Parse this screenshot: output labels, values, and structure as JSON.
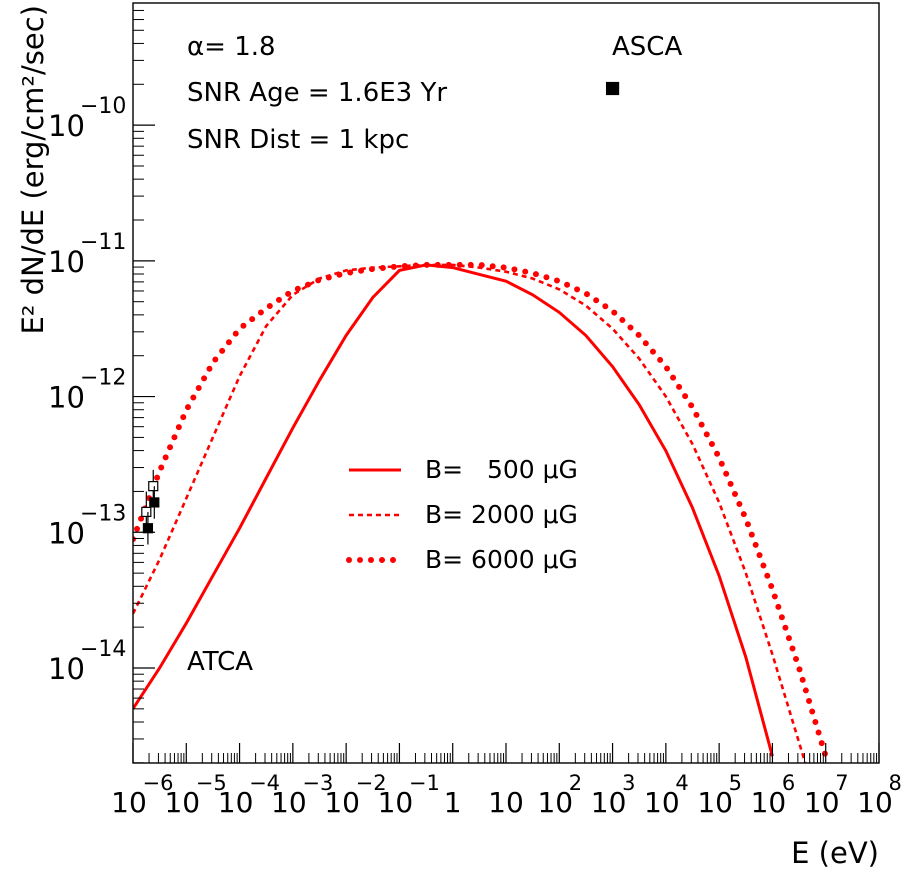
{
  "chart_data": {
    "type": "line",
    "x_scale": "log",
    "y_scale": "log",
    "xlim_log10": [
      -6.0,
      8.0
    ],
    "ylim_log10": [
      -14.7,
      -9.1
    ],
    "xlabel": "E (eV)",
    "ylabel": "E² dN/dE (erg/cm²/sec)",
    "x_ticks": [
      {
        "base": "10",
        "exp": "−6",
        "log": -6
      },
      {
        "base": "10",
        "exp": "−5",
        "log": -5
      },
      {
        "base": "10",
        "exp": "−4",
        "log": -4
      },
      {
        "base": "10",
        "exp": "−3",
        "log": -3
      },
      {
        "base": "10",
        "exp": "−2",
        "log": -2
      },
      {
        "base": "10",
        "exp": "−1",
        "log": -1
      },
      {
        "base": "1",
        "exp": "",
        "log": 0
      },
      {
        "base": "10",
        "exp": "",
        "log": 1
      },
      {
        "base": "10",
        "exp": "2",
        "log": 2
      },
      {
        "base": "10",
        "exp": "3",
        "log": 3
      },
      {
        "base": "10",
        "exp": "4",
        "log": 4
      },
      {
        "base": "10",
        "exp": "5",
        "log": 5
      },
      {
        "base": "10",
        "exp": "6",
        "log": 6
      },
      {
        "base": "10",
        "exp": "7",
        "log": 7
      },
      {
        "base": "10",
        "exp": "8",
        "log": 8
      }
    ],
    "y_ticks": [
      {
        "base": "10",
        "exp": "−14",
        "log": -14
      },
      {
        "base": "10",
        "exp": "−13",
        "log": -13
      },
      {
        "base": "10",
        "exp": "−12",
        "log": -12
      },
      {
        "base": "10",
        "exp": "−11",
        "log": -11
      },
      {
        "base": "10",
        "exp": "−10",
        "log": -10
      }
    ],
    "annotations": {
      "alpha": "α= 1.8",
      "age": "SNR Age = 1.6E3 Yr",
      "dist": "SNR Dist = 1 kpc",
      "asca": "ASCA",
      "atca": "ATCA"
    },
    "legend": {
      "placement": "center",
      "entries": [
        "B=   500 μG",
        "B= 2000 μG",
        "B= 6000 μG"
      ]
    },
    "series": [
      {
        "name": "B=   500 μG",
        "style": "solid",
        "color": "#ff0000",
        "x_log10": [
          -6.0,
          -5.5,
          -5.0,
          -4.5,
          -4.0,
          -3.5,
          -3.0,
          -2.5,
          -2.0,
          -1.5,
          -1.0,
          -0.5,
          0.0,
          0.5,
          1.0,
          1.5,
          2.0,
          2.5,
          3.0,
          3.5,
          4.0,
          4.5,
          5.0,
          5.5,
          6.0
        ],
        "y_log10": [
          -14.3,
          -14.0,
          -13.67,
          -13.32,
          -12.97,
          -12.6,
          -12.23,
          -11.88,
          -11.55,
          -11.27,
          -11.07,
          -11.03,
          -11.05,
          -11.1,
          -11.15,
          -11.25,
          -11.38,
          -11.55,
          -11.78,
          -12.06,
          -12.4,
          -12.82,
          -13.32,
          -13.92,
          -14.65
        ]
      },
      {
        "name": "B= 2000 μG",
        "style": "dashed",
        "color": "#ff0000",
        "x_log10": [
          -6.0,
          -5.5,
          -5.0,
          -4.5,
          -4.0,
          -3.5,
          -3.0,
          -2.5,
          -2.0,
          -1.5,
          -1.0,
          -0.5,
          0.0,
          0.5,
          1.0,
          1.5,
          2.0,
          2.5,
          3.0,
          3.5,
          4.0,
          4.5,
          5.0,
          5.5,
          6.0,
          6.5,
          7.0
        ],
        "y_log10": [
          -13.6,
          -13.2,
          -12.75,
          -12.3,
          -11.85,
          -11.48,
          -11.25,
          -11.13,
          -11.07,
          -11.05,
          -11.04,
          -11.03,
          -11.03,
          -11.05,
          -11.08,
          -11.13,
          -11.21,
          -11.33,
          -11.5,
          -11.72,
          -12.0,
          -12.35,
          -12.78,
          -13.3,
          -13.9,
          -14.55,
          -15.2
        ]
      },
      {
        "name": "B= 6000 μG",
        "style": "dotted",
        "color": "#ff0000",
        "x_log10": [
          -6.0,
          -5.5,
          -5.0,
          -4.5,
          -4.0,
          -3.5,
          -3.0,
          -2.5,
          -2.0,
          -1.5,
          -1.0,
          -0.5,
          0.0,
          0.5,
          1.0,
          1.5,
          2.0,
          2.5,
          3.0,
          3.5,
          4.0,
          4.5,
          5.0,
          5.5,
          6.0,
          6.5,
          7.0
        ],
        "y_log10": [
          -13.05,
          -12.55,
          -12.1,
          -11.75,
          -11.5,
          -11.35,
          -11.22,
          -11.14,
          -11.09,
          -11.06,
          -11.04,
          -11.03,
          -11.03,
          -11.03,
          -11.05,
          -11.09,
          -11.15,
          -11.24,
          -11.37,
          -11.55,
          -11.78,
          -12.08,
          -12.45,
          -12.9,
          -13.42,
          -14.0,
          -14.65
        ]
      }
    ],
    "data_points": [
      {
        "label": "ATCA",
        "fill": "open",
        "x_log10": -5.75,
        "y_log10": -12.85,
        "y_err_log10": 0.15
      },
      {
        "label": "ATCA",
        "fill": "open",
        "x_log10": -5.62,
        "y_log10": -12.66,
        "y_err_log10": 0.12
      },
      {
        "label": "ATCA",
        "fill": "filled",
        "x_log10": -5.72,
        "y_log10": -12.97,
        "y_err_log10": 0.12
      },
      {
        "label": "ATCA",
        "fill": "filled",
        "x_log10": -5.6,
        "y_log10": -12.78,
        "y_err_log10": 0.12
      },
      {
        "label": "ASCA",
        "fill": "filled",
        "x_log10": 3.0,
        "y_log10": -9.73,
        "y_err_log10": 0
      }
    ]
  }
}
